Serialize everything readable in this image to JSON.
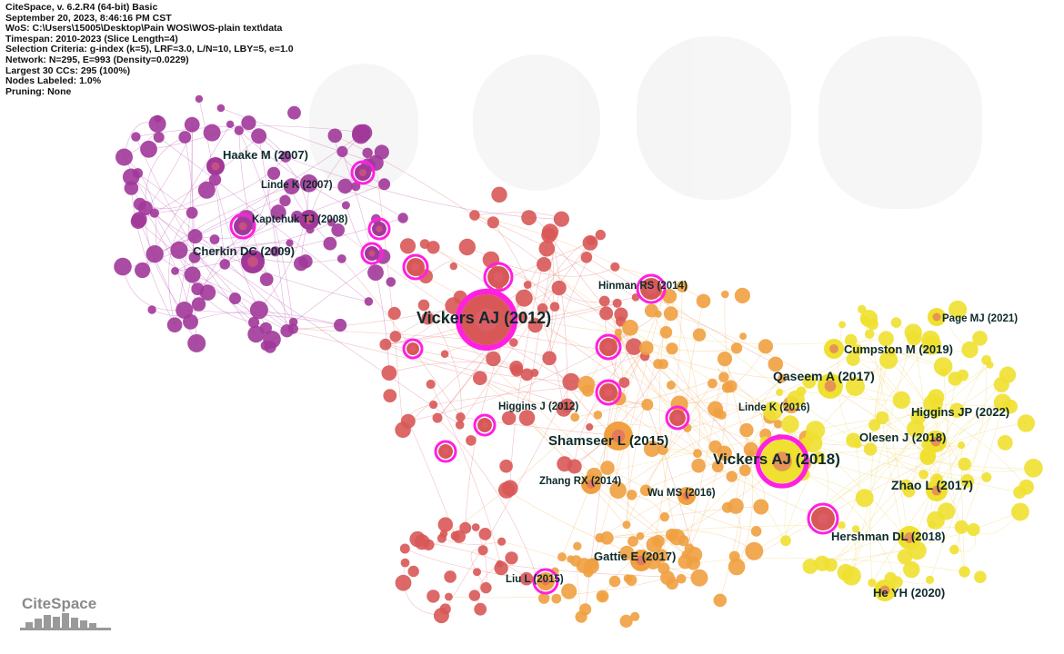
{
  "header": {
    "lines": [
      "CiteSpace, v. 6.2.R4 (64-bit) Basic",
      "September 20, 2023, 8:46:16 PM CST",
      "WoS: C:\\Users\\15005\\Desktop\\Pain WOS\\WOS-plain text\\data",
      "Timespan: 2010-2023 (Slice Length=4)",
      "Selection Criteria: g-index (k=5), LRF=3.0, L/N=10, LBY=5, e=1.0",
      "Network: N=295, E=993 (Density=0.0229)",
      "Largest 30 CCs: 295 (100%)",
      "Nodes Labeled: 1.0%",
      "Pruning: None"
    ]
  },
  "logo": {
    "text": "CiteSpace"
  },
  "colors": {
    "purple": "#a1389a",
    "red": "#d85858",
    "orange": "#f0a040",
    "yellow": "#f0e030",
    "ring": "#ff20e0"
  },
  "nodes": [
    {
      "label": "Haake M (2007)"
    },
    {
      "label": "Linde K (2007)"
    },
    {
      "label": "Kaptchuk TJ (2008)"
    },
    {
      "label": "Cherkin DC (2009)"
    },
    {
      "label": "Vickers AJ (2012)"
    },
    {
      "label": "Hinman RS (2014)"
    },
    {
      "label": "Page MJ (2021)"
    },
    {
      "label": "Cumpston M (2019)"
    },
    {
      "label": "Qaseem A (2017)"
    },
    {
      "label": "Linde K (2016)"
    },
    {
      "label": "Higgins JP (2022)"
    },
    {
      "label": "Higgins J (2012)"
    },
    {
      "label": "Olesen J (2018)"
    },
    {
      "label": "Shamseer L (2015)"
    },
    {
      "label": "Vickers AJ (2018)"
    },
    {
      "label": "Zhang RX (2014)"
    },
    {
      "label": "Zhao L (2017)"
    },
    {
      "label": "Wu MS (2016)"
    },
    {
      "label": "Hershman DL (2018)"
    },
    {
      "label": "Gattie E (2017)"
    },
    {
      "label": "Liu L (2015)"
    },
    {
      "label": "He YH (2020)"
    }
  ]
}
